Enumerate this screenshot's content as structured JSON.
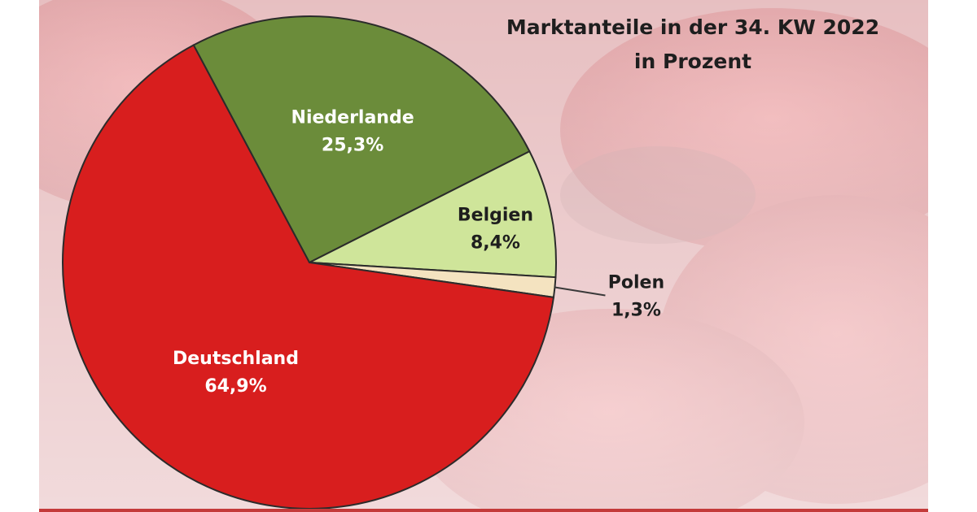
{
  "chart_data": {
    "type": "pie",
    "title": "Marktanteile in der 34. KW 2022",
    "subtitle": "in Prozent",
    "slices": [
      {
        "label": "Niederlande",
        "value": 25.3,
        "value_label": "25,3%",
        "color": "#6b8c3a"
      },
      {
        "label": "Belgien",
        "value": 8.4,
        "value_label": "8,4%",
        "color": "#cfe59a"
      },
      {
        "label": "Polen",
        "value": 1.3,
        "value_label": "1,3%",
        "color": "#f4e3c0"
      },
      {
        "label": "Deutschland",
        "value": 64.9,
        "value_label": "64,9%",
        "color": "#d81e1e"
      }
    ]
  }
}
